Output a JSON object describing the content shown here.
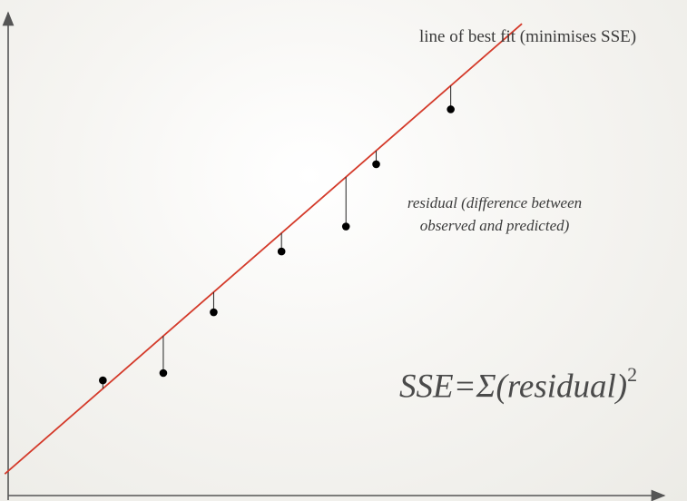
{
  "labels": {
    "best_fit": "line of best fit (minimises SSE)",
    "residual": "residual (difference between observed and predicted)",
    "sse_base": "SSE=Σ(residual)",
    "sse_exponent": "2"
  },
  "colors": {
    "fit_line": "#d43a2a",
    "points": "#000000",
    "residual_lines": "#222222",
    "axes": "#555555"
  },
  "chart_data": {
    "type": "scatter",
    "xlim": [
      0,
      10
    ],
    "ylim": [
      0,
      10
    ],
    "points": [
      {
        "x": 1.41,
        "y": 2.35
      },
      {
        "x": 2.31,
        "y": 2.5
      },
      {
        "x": 3.06,
        "y": 3.74
      },
      {
        "x": 4.07,
        "y": 4.98
      },
      {
        "x": 5.03,
        "y": 5.49
      },
      {
        "x": 5.48,
        "y": 6.76
      },
      {
        "x": 6.59,
        "y": 7.88
      }
    ],
    "fit_line": {
      "slope": 1.193,
      "intercept": 0.5
    },
    "xlabel": "",
    "ylabel": "",
    "grid": false,
    "legend": "none"
  }
}
